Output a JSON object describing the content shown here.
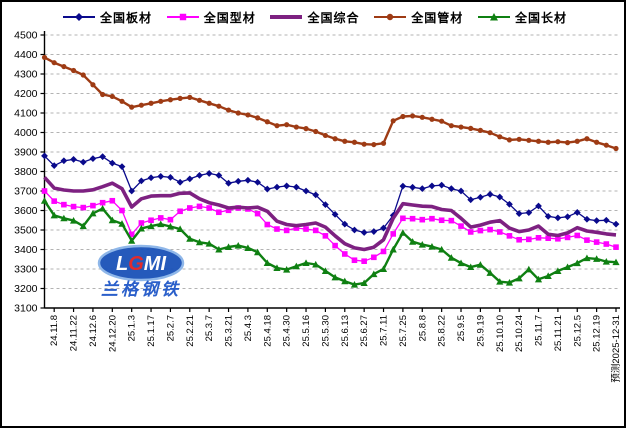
{
  "frame": {
    "background": "#ffffff",
    "border_color": "#000000"
  },
  "watermark": {
    "logo_text": "LGMI",
    "logo_letters": [
      "L",
      "G",
      "M",
      "I"
    ],
    "company_text": "兰格钢铁",
    "ellipse_fill": "#1a52b8",
    "ellipse_ring": "#8ab4e8",
    "letter_color": "#ffffff",
    "accent_color": "#e02020",
    "company_color": "#1f57c8"
  },
  "chart_data": {
    "type": "line",
    "title": "",
    "legend_position": "top",
    "grid": "horizontal-dashed",
    "grid_color": "#b3b3b3",
    "axis_color": "#000000",
    "forecast_label": "预测2025-12-31",
    "y_axis": {
      "min": 3100,
      "max": 4500,
      "step": 100,
      "tick_labels": [
        "4500",
        "4400",
        "4300",
        "4200",
        "4100",
        "4000",
        "3900",
        "3800",
        "3700",
        "3600",
        "3500",
        "3400",
        "3300",
        "3200",
        "3100"
      ]
    },
    "x_tick_labels": [
      "24.11.8",
      "24.11.22",
      "24.12.6",
      "24.12.20",
      "25.1.3",
      "25.1.17",
      "25.2.7",
      "25.2.21",
      "25.3.7",
      "25.3.21",
      "25.4.3",
      "25.4.18",
      "25.4.30",
      "25.5.16",
      "25.5.30",
      "25.6.13",
      "25.6.27",
      "25.7.11",
      "25.7.25",
      "25.8.8",
      "25.8.22",
      "25.9.5",
      "25.9.19",
      "25.10.10",
      "25.10.24",
      "25.11.7",
      "25.11.21",
      "25.12.5",
      "25.12.19",
      "预测2025-12-31"
    ],
    "points_per_series": 60,
    "labels_every": 2,
    "series": [
      {
        "name": "全国板材",
        "color": "#0a0a8c",
        "marker": "diamond",
        "line_width": 1.3,
        "values": [
          3880,
          3830,
          3855,
          3862,
          3848,
          3866,
          3876,
          3843,
          3825,
          3700,
          3752,
          3768,
          3775,
          3770,
          3745,
          3762,
          3780,
          3790,
          3780,
          3740,
          3750,
          3755,
          3745,
          3710,
          3720,
          3726,
          3720,
          3700,
          3680,
          3630,
          3580,
          3530,
          3500,
          3487,
          3492,
          3510,
          3575,
          3725,
          3719,
          3712,
          3726,
          3730,
          3712,
          3700,
          3655,
          3668,
          3683,
          3669,
          3632,
          3584,
          3589,
          3623,
          3570,
          3562,
          3568,
          3590,
          3555,
          3548,
          3550,
          3530
        ]
      },
      {
        "name": "全国型材",
        "color": "#ff00ff",
        "marker": "square",
        "line_width": 1.3,
        "values": [
          3700,
          3648,
          3630,
          3620,
          3615,
          3625,
          3640,
          3650,
          3600,
          3478,
          3536,
          3550,
          3562,
          3553,
          3596,
          3613,
          3621,
          3613,
          3591,
          3601,
          3613,
          3608,
          3584,
          3528,
          3505,
          3498,
          3510,
          3505,
          3498,
          3470,
          3420,
          3377,
          3345,
          3340,
          3360,
          3390,
          3480,
          3560,
          3558,
          3553,
          3558,
          3550,
          3548,
          3520,
          3490,
          3497,
          3502,
          3490,
          3470,
          3450,
          3452,
          3460,
          3458,
          3455,
          3462,
          3472,
          3448,
          3438,
          3428,
          3412
        ]
      },
      {
        "name": "全国综合",
        "color": "#7d2181",
        "marker": "none",
        "line_width": 3.6,
        "values": [
          3770,
          3715,
          3705,
          3700,
          3700,
          3706,
          3722,
          3740,
          3712,
          3618,
          3660,
          3674,
          3676,
          3676,
          3688,
          3690,
          3660,
          3640,
          3628,
          3613,
          3617,
          3613,
          3617,
          3596,
          3545,
          3528,
          3522,
          3528,
          3536,
          3515,
          3470,
          3430,
          3408,
          3400,
          3412,
          3450,
          3560,
          3635,
          3628,
          3622,
          3620,
          3605,
          3600,
          3560,
          3515,
          3525,
          3540,
          3548,
          3510,
          3492,
          3500,
          3520,
          3478,
          3472,
          3485,
          3512,
          3495,
          3488,
          3480,
          3475
        ]
      },
      {
        "name": "全国管材",
        "color": "#9e3b14",
        "marker": "circle",
        "line_width": 2.4,
        "values": [
          4385,
          4358,
          4338,
          4318,
          4295,
          4245,
          4195,
          4185,
          4160,
          4130,
          4140,
          4150,
          4160,
          4168,
          4175,
          4180,
          4165,
          4150,
          4135,
          4115,
          4100,
          4090,
          4075,
          4055,
          4035,
          4040,
          4028,
          4020,
          4005,
          3985,
          3968,
          3955,
          3950,
          3940,
          3938,
          3945,
          4060,
          4082,
          4085,
          4078,
          4068,
          4058,
          4035,
          4028,
          4021,
          4011,
          3999,
          3978,
          3962,
          3965,
          3960,
          3955,
          3950,
          3953,
          3948,
          3955,
          3968,
          3950,
          3935,
          3918
        ]
      },
      {
        "name": "全国长材",
        "color": "#0f8012",
        "marker": "triangle",
        "line_width": 2.4,
        "values": [
          3650,
          3575,
          3560,
          3548,
          3520,
          3585,
          3610,
          3550,
          3532,
          3445,
          3508,
          3520,
          3530,
          3518,
          3505,
          3455,
          3437,
          3430,
          3400,
          3413,
          3420,
          3408,
          3386,
          3331,
          3305,
          3297,
          3314,
          3331,
          3323,
          3290,
          3257,
          3237,
          3220,
          3228,
          3274,
          3300,
          3400,
          3486,
          3440,
          3425,
          3415,
          3400,
          3358,
          3330,
          3310,
          3322,
          3280,
          3235,
          3230,
          3252,
          3298,
          3247,
          3264,
          3290,
          3310,
          3330,
          3356,
          3352,
          3338,
          3335
        ]
      }
    ]
  }
}
